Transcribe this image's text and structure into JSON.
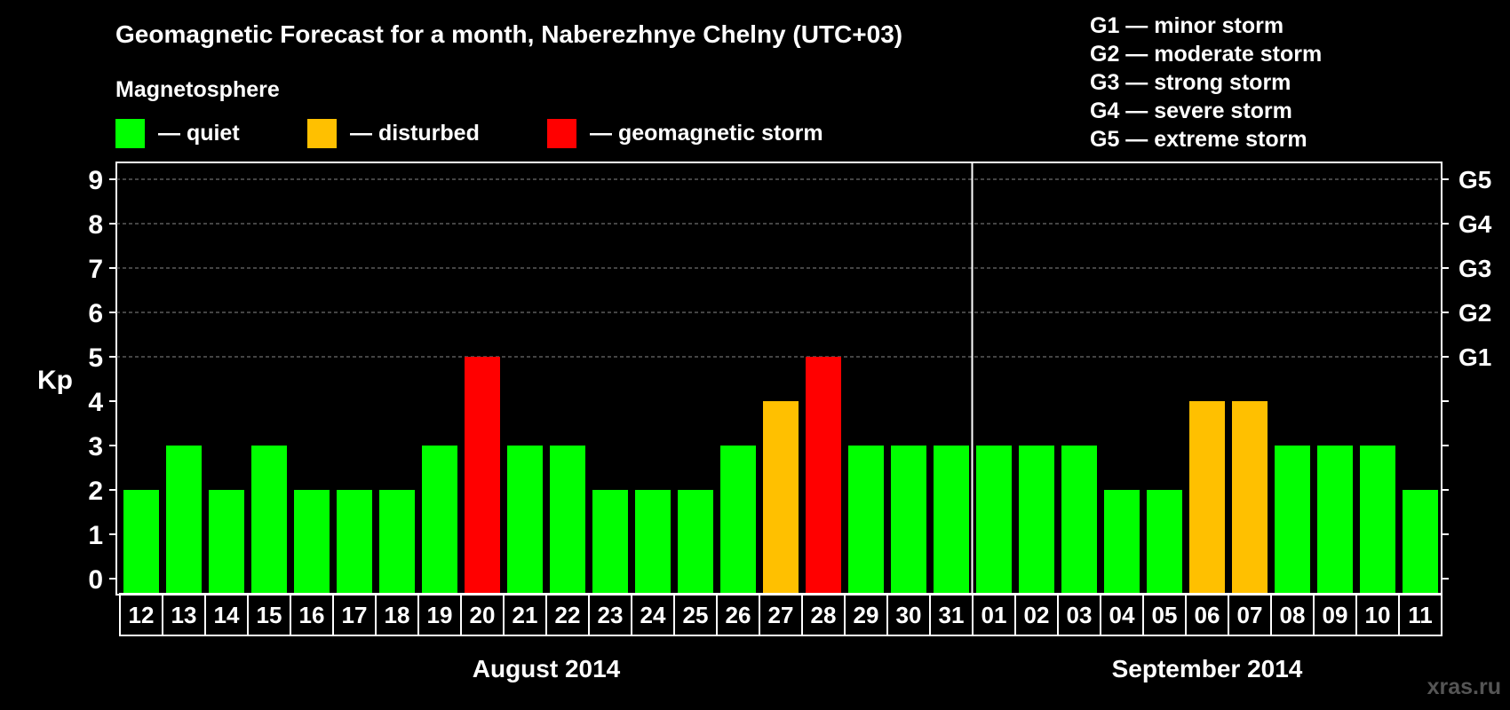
{
  "chart_data": {
    "type": "bar",
    "title": "Geomagnetic Forecast for a month, Naberezhnye Chelny (UTC+03)",
    "legend": {
      "heading": "Magnetosphere",
      "items": [
        {
          "label": "— quiet",
          "color": "#00ff00"
        },
        {
          "label": "— disturbed",
          "color": "#ffc000"
        },
        {
          "label": "— geomagnetic storm",
          "color": "#ff0000"
        }
      ]
    },
    "g_scale_legend": [
      "G1 — minor storm",
      "G2 — moderate storm",
      "G3 — strong storm",
      "G4 — severe storm",
      "G5 — extreme storm"
    ],
    "ylabel": "Kp",
    "ylim": [
      0,
      9
    ],
    "yticks": [
      0,
      1,
      2,
      3,
      4,
      5,
      6,
      7,
      8,
      9
    ],
    "right_ticks": [
      {
        "kp": 5,
        "label": "G1"
      },
      {
        "kp": 6,
        "label": "G2"
      },
      {
        "kp": 7,
        "label": "G3"
      },
      {
        "kp": 8,
        "label": "G4"
      },
      {
        "kp": 9,
        "label": "G5"
      }
    ],
    "grid": "dashed at Kp 5-9",
    "categories": [
      "12",
      "13",
      "14",
      "15",
      "16",
      "17",
      "18",
      "19",
      "20",
      "21",
      "22",
      "23",
      "24",
      "25",
      "26",
      "27",
      "28",
      "29",
      "30",
      "31",
      "01",
      "02",
      "03",
      "04",
      "05",
      "06",
      "07",
      "08",
      "09",
      "10",
      "11"
    ],
    "values": [
      2,
      3,
      2,
      3,
      2,
      2,
      2,
      3,
      5,
      3,
      3,
      2,
      2,
      2,
      3,
      4,
      5,
      3,
      3,
      3,
      3,
      3,
      3,
      2,
      2,
      4,
      4,
      3,
      3,
      3,
      2
    ],
    "colors": {
      "quiet": "#00ff00",
      "disturbed": "#ffc000",
      "storm": "#ff0000"
    },
    "months": [
      {
        "label": "August 2014",
        "first_index": 0,
        "count": 20
      },
      {
        "label": "September 2014",
        "first_index": 20,
        "count": 11
      }
    ]
  },
  "watermark": "xras.ru"
}
